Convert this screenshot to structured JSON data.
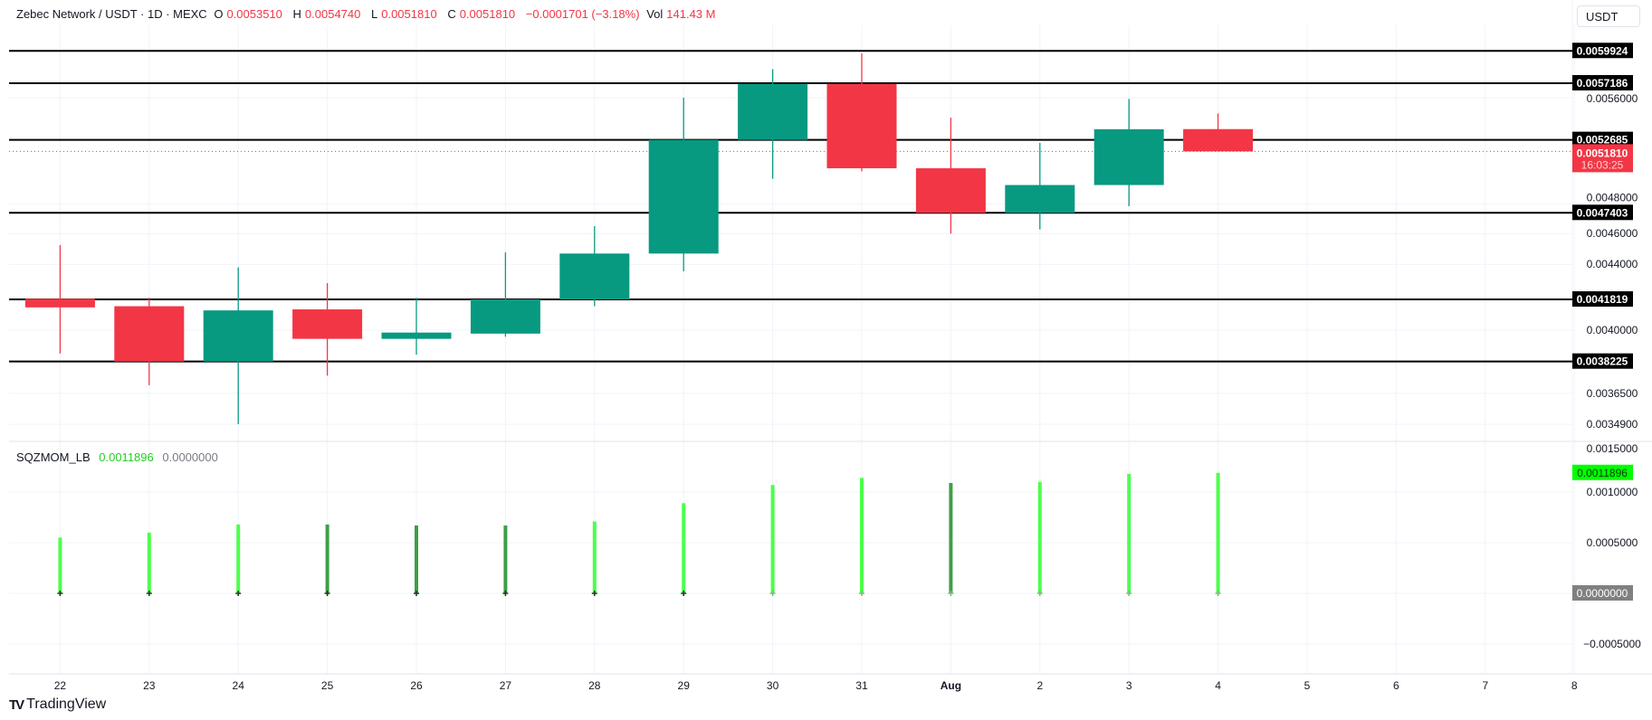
{
  "header": {
    "symbol": "Zebec Network / USDT · 1D · MEXC",
    "open_label": "O",
    "open": "0.0053510",
    "high_label": "H",
    "high": "0.0054740",
    "low_label": "L",
    "low": "0.0051810",
    "close_label": "C",
    "close": "0.0051810",
    "change": "−0.0001701 (−3.18%)",
    "vol_label": "Vol",
    "vol": "141.43 M"
  },
  "currency_button": "USDT",
  "indicator": {
    "name": "SQZMOM_LB",
    "value": "0.0011896",
    "value2": "0.0000000"
  },
  "branding": "TradingView",
  "colors": {
    "up": "#089981",
    "down": "#f23645",
    "mom_up": "#4cff4c",
    "mom_down": "#3f9e46",
    "level": "#000000"
  },
  "chart_data": [
    {
      "type": "candlestick",
      "scale": "log",
      "grid": true,
      "x": [
        "22",
        "23",
        "24",
        "25",
        "26",
        "27",
        "28",
        "29",
        "30",
        "31",
        "Aug",
        "2",
        "3",
        "4"
      ],
      "x_ticks": [
        "22",
        "23",
        "24",
        "25",
        "26",
        "27",
        "28",
        "29",
        "30",
        "31",
        "Aug",
        "2",
        "3",
        "4",
        "5",
        "6",
        "7",
        "8"
      ],
      "ohlc": [
        [
          0.004186,
          0.004524,
          0.003867,
          0.004134
        ],
        [
          0.004141,
          0.004192,
          0.003694,
          0.0038225
        ],
        [
          0.0038225,
          0.004381,
          0.003491,
          0.004116
        ],
        [
          0.004122,
          0.004282,
          0.003745,
          0.00395
        ],
        [
          0.00395,
          0.004192,
          0.003861,
          0.003986
        ],
        [
          0.00398,
          0.004476,
          0.003962,
          0.004182
        ],
        [
          0.004182,
          0.00465,
          0.004141,
          0.004469
        ],
        [
          0.004469,
          0.0056,
          0.004355,
          0.0052685
        ],
        [
          0.0052685,
          0.005836,
          0.00498,
          0.005713
        ],
        [
          0.005713,
          0.00597,
          0.005033,
          0.005056
        ],
        [
          0.005056,
          0.00544,
          0.0046,
          0.00474
        ],
        [
          0.00474,
          0.005245,
          0.004628,
          0.004935
        ],
        [
          0.004935,
          0.00559,
          0.004786,
          0.00535
        ],
        [
          0.005351,
          0.005474,
          0.005181,
          0.005181
        ]
      ],
      "y_ticks": [
        "0.0056000",
        "0.0048000",
        "0.0046000",
        "0.0044000",
        "0.0040000",
        "0.0036500",
        "0.0034900"
      ],
      "horizontal_levels": [
        "0.0059924",
        "0.0057186",
        "0.0052685",
        "0.0047403",
        "0.0041819",
        "0.0038225"
      ],
      "last_price": "0.0051810",
      "countdown": "16:03:25"
    },
    {
      "type": "bar",
      "name": "SQZMOM_LB",
      "x": [
        "22",
        "23",
        "24",
        "25",
        "26",
        "27",
        "28",
        "29",
        "30",
        "31",
        "Aug",
        "2",
        "3",
        "4"
      ],
      "values": [
        0.00055,
        0.0006,
        0.00068,
        0.00068,
        0.00067,
        0.00067,
        0.00071,
        0.00089,
        0.00107,
        0.00114,
        0.00109,
        0.0011,
        0.00118,
        0.0011896
      ],
      "rising": [
        true,
        true,
        true,
        false,
        false,
        false,
        true,
        true,
        true,
        true,
        false,
        true,
        true,
        true
      ],
      "squeeze_on": [
        true,
        true,
        true,
        true,
        true,
        true,
        true,
        true,
        false,
        false,
        false,
        false,
        false,
        false
      ],
      "y_ticks": [
        "0.0015000",
        "0.0010000",
        "0.0005000",
        "−0.0005000"
      ],
      "last_value": "0.0011896",
      "zero_value": "0.0000000"
    }
  ]
}
